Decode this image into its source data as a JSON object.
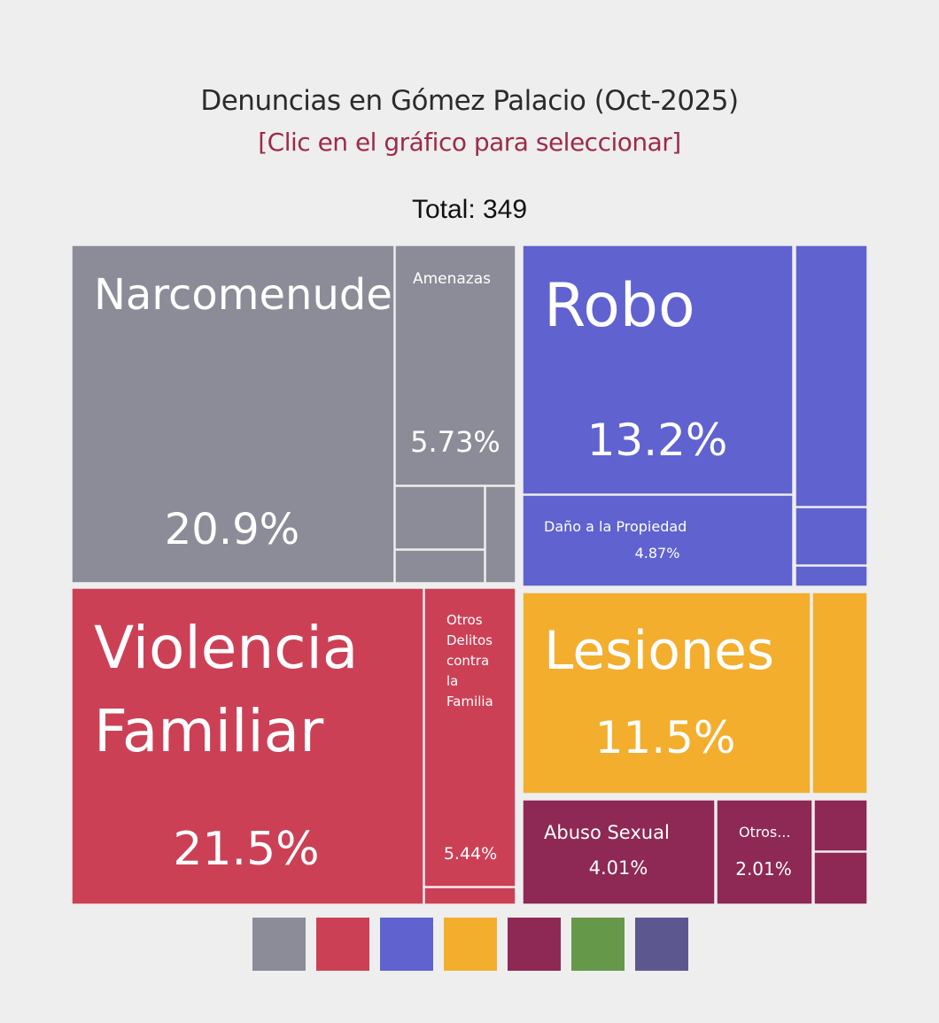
{
  "header": {
    "title": "Denuncias en Gómez Palacio (Oct-2025)",
    "subtitle": "[Clic en el gráfico para seleccionar]",
    "subtitle_color": "#9e2a4a",
    "total": "Total: 349"
  },
  "chart_data": {
    "type": "treemap",
    "title": "Denuncias en Gómez Palacio (Oct-2025)",
    "total": 349,
    "groups": [
      {
        "color": "#8c8c98",
        "items": [
          {
            "label": "Narcomenudeo",
            "value": 20.9,
            "pct": "20.9%"
          },
          {
            "label": "Amenazas",
            "value": 5.73,
            "pct": "5.73%"
          },
          {
            "label": "",
            "value": null,
            "pct": ""
          },
          {
            "label": "",
            "value": null,
            "pct": ""
          },
          {
            "label": "",
            "value": null,
            "pct": ""
          }
        ]
      },
      {
        "color": "#cc4056",
        "items": [
          {
            "label": "Violencia Familiar",
            "value": 21.5,
            "pct": "21.5%"
          },
          {
            "label": "Otros Delitos contra la Familia",
            "value": 5.44,
            "pct": "5.44%"
          },
          {
            "label": "",
            "value": null,
            "pct": ""
          }
        ]
      },
      {
        "color": "#5f62cf",
        "items": [
          {
            "label": "Robo",
            "value": 13.2,
            "pct": "13.2%"
          },
          {
            "label": "Daño a la Propiedad",
            "value": 4.87,
            "pct": "4.87%"
          },
          {
            "label": "",
            "value": null,
            "pct": ""
          },
          {
            "label": "",
            "value": null,
            "pct": ""
          },
          {
            "label": "",
            "value": null,
            "pct": ""
          }
        ]
      },
      {
        "color": "#f3ae2e",
        "items": [
          {
            "label": "Lesiones",
            "value": 11.5,
            "pct": "11.5%"
          },
          {
            "label": "",
            "value": null,
            "pct": ""
          }
        ]
      },
      {
        "color": "#8e2854",
        "items": [
          {
            "label": "Abuso Sexual",
            "value": 4.01,
            "pct": "4.01%"
          },
          {
            "label": "Otros...",
            "value": 2.01,
            "pct": "2.01%"
          },
          {
            "label": "",
            "value": null,
            "pct": ""
          },
          {
            "label": "",
            "value": null,
            "pct": ""
          }
        ]
      }
    ],
    "legend_colors": [
      "#8c8c98",
      "#cc4056",
      "#5f62cf",
      "#f3ae2e",
      "#8e2854",
      "#66984a",
      "#5d578f"
    ]
  }
}
